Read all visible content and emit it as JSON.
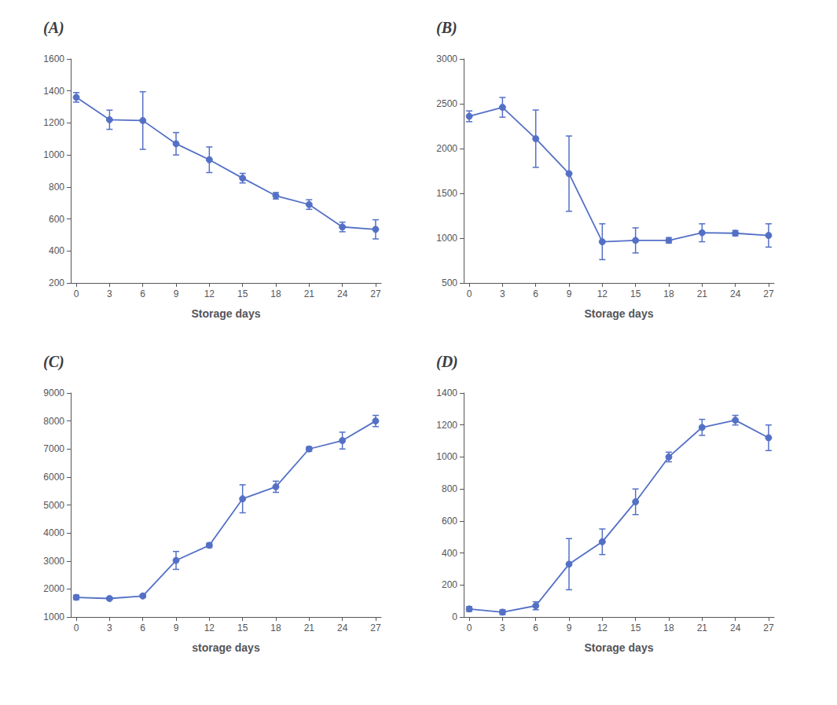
{
  "chart_data": [
    {
      "type": "line",
      "title": "(A)",
      "xlabel": "Storage days",
      "x": [
        0,
        3,
        6,
        9,
        12,
        15,
        18,
        21,
        24,
        27
      ],
      "values": [
        1360,
        1220,
        1215,
        1070,
        970,
        855,
        745,
        690,
        550,
        535
      ],
      "yerr": [
        30,
        60,
        180,
        70,
        80,
        30,
        20,
        30,
        30,
        60
      ],
      "xlim": [
        -0.5,
        27.5
      ],
      "xticks": [
        0,
        3,
        6,
        9,
        12,
        15,
        18,
        21,
        24,
        27
      ],
      "ylim": [
        200,
        1600
      ],
      "yticks": [
        200,
        400,
        600,
        800,
        1000,
        1200,
        1400,
        1600
      ],
      "grid": false,
      "marker": "circle"
    },
    {
      "type": "line",
      "title": "(B)",
      "xlabel": "Storage days",
      "x": [
        0,
        3,
        6,
        9,
        12,
        15,
        18,
        21,
        24,
        27
      ],
      "values": [
        2360,
        2460,
        2110,
        1720,
        960,
        975,
        975,
        1060,
        1055,
        1030
      ],
      "yerr": [
        60,
        110,
        320,
        420,
        200,
        140,
        30,
        100,
        30,
        130
      ],
      "xlim": [
        -0.5,
        27.5
      ],
      "xticks": [
        0,
        3,
        6,
        9,
        12,
        15,
        18,
        21,
        24,
        27
      ],
      "ylim": [
        500,
        3000
      ],
      "yticks": [
        500,
        1000,
        1500,
        2000,
        2500,
        3000
      ],
      "grid": false,
      "marker": "circle"
    },
    {
      "type": "line",
      "title": "(C)",
      "xlabel": "storage days",
      "x": [
        0,
        3,
        6,
        9,
        12,
        15,
        18,
        21,
        24,
        27
      ],
      "values": [
        1700,
        1660,
        1750,
        3020,
        3560,
        5220,
        5650,
        7000,
        7300,
        8000
      ],
      "yerr": [
        80,
        40,
        50,
        320,
        80,
        500,
        200,
        80,
        300,
        200
      ],
      "xlim": [
        -0.5,
        27.5
      ],
      "xticks": [
        0,
        3,
        6,
        9,
        12,
        15,
        18,
        21,
        24,
        27
      ],
      "ylim": [
        1000,
        9000
      ],
      "yticks": [
        1000,
        2000,
        3000,
        4000,
        5000,
        6000,
        7000,
        8000,
        9000
      ],
      "grid": false,
      "marker": "circle"
    },
    {
      "type": "line",
      "title": "(D)",
      "xlabel": "Storage days",
      "x": [
        0,
        3,
        6,
        9,
        12,
        15,
        18,
        21,
        24,
        27
      ],
      "values": [
        50,
        30,
        70,
        330,
        470,
        720,
        1000,
        1185,
        1230,
        1120
      ],
      "yerr": [
        15,
        15,
        25,
        160,
        80,
        80,
        30,
        50,
        30,
        80
      ],
      "xlim": [
        -0.5,
        27.5
      ],
      "xticks": [
        0,
        3,
        6,
        9,
        12,
        15,
        18,
        21,
        24,
        27
      ],
      "ylim": [
        0,
        1400
      ],
      "yticks": [
        0,
        200,
        400,
        600,
        800,
        1000,
        1200,
        1400
      ],
      "grid": false,
      "marker": "circle"
    }
  ]
}
